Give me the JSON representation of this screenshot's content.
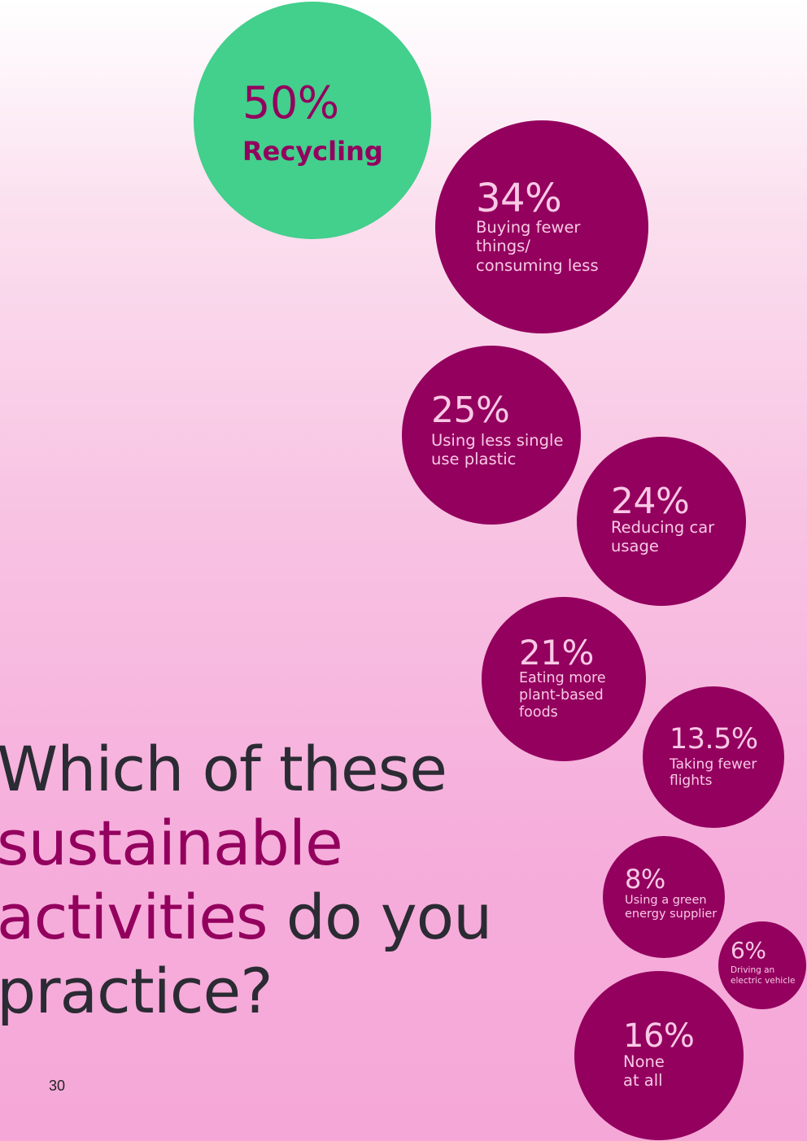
{
  "chart_data": {
    "type": "bubble",
    "items": [
      {
        "value": 50,
        "value_label": "50%",
        "label": "Recycling",
        "highlight": true
      },
      {
        "value": 34,
        "value_label": "34%",
        "label": "Buying fewer\nthings/\nconsuming less"
      },
      {
        "value": 25,
        "value_label": "25%",
        "label": "Using less single\nuse plastic"
      },
      {
        "value": 24,
        "value_label": "24%",
        "label": "Reducing car\nusage"
      },
      {
        "value": 21,
        "value_label": "21%",
        "label": "Eating more\nplant-based\nfoods"
      },
      {
        "value": 13.5,
        "value_label": "13.5%",
        "label": "Taking fewer\nflights"
      },
      {
        "value": 8,
        "value_label": "8%",
        "label": "Using a green\nenergy supplier"
      },
      {
        "value": 6,
        "value_label": "6%",
        "label": "Driving an\nelectric vehicle"
      },
      {
        "value": 16,
        "value_label": "16%",
        "label": "None\nat all"
      }
    ]
  },
  "colors": {
    "highlight_bubble": "#43cf8c",
    "bubble": "#93005e",
    "highlight_text": "#93005e",
    "bubble_text": "#f9c8e5",
    "heading_dark": "#2b2b33",
    "heading_accent": "#93005e"
  },
  "question": {
    "line1": "Which of these",
    "line2": "sustainable",
    "line3_accent": "activities",
    "line3_rest": " do you",
    "line4": "practice?"
  },
  "page_number": "30"
}
